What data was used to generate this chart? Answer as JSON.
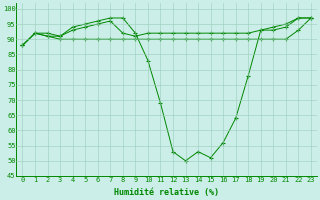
{
  "x": [
    0,
    1,
    2,
    3,
    4,
    5,
    6,
    7,
    8,
    9,
    10,
    11,
    12,
    13,
    14,
    15,
    16,
    17,
    18,
    19,
    20,
    21,
    22,
    23
  ],
  "line1": [
    88,
    92,
    91,
    91,
    94,
    95,
    96,
    97,
    97,
    92,
    83,
    69,
    53,
    50,
    53,
    51,
    56,
    64,
    78,
    93,
    94,
    95,
    97,
    97
  ],
  "line2": [
    88,
    92,
    92,
    91,
    93,
    94,
    95,
    96,
    92,
    91,
    92,
    92,
    92,
    92,
    92,
    92,
    92,
    92,
    92,
    93,
    93,
    94,
    97,
    97
  ],
  "line3": [
    88,
    92,
    91,
    90,
    90,
    90,
    90,
    90,
    90,
    90,
    90,
    90,
    90,
    90,
    90,
    90,
    90,
    90,
    90,
    90,
    90,
    90,
    93,
    97
  ],
  "line_color": "#008800",
  "bg_color": "#cceee8",
  "grid_color": "#99ccbb",
  "xlabel": "Humidité relative (%)",
  "ylim": [
    45,
    102
  ],
  "xlim": [
    -0.5,
    23.5
  ],
  "yticks": [
    45,
    50,
    55,
    60,
    65,
    70,
    75,
    80,
    85,
    90,
    95,
    100
  ],
  "xticks": [
    0,
    1,
    2,
    3,
    4,
    5,
    6,
    7,
    8,
    9,
    10,
    11,
    12,
    13,
    14,
    15,
    16,
    17,
    18,
    19,
    20,
    21,
    22,
    23
  ],
  "tick_fontsize": 5.0,
  "xlabel_fontsize": 6.0
}
